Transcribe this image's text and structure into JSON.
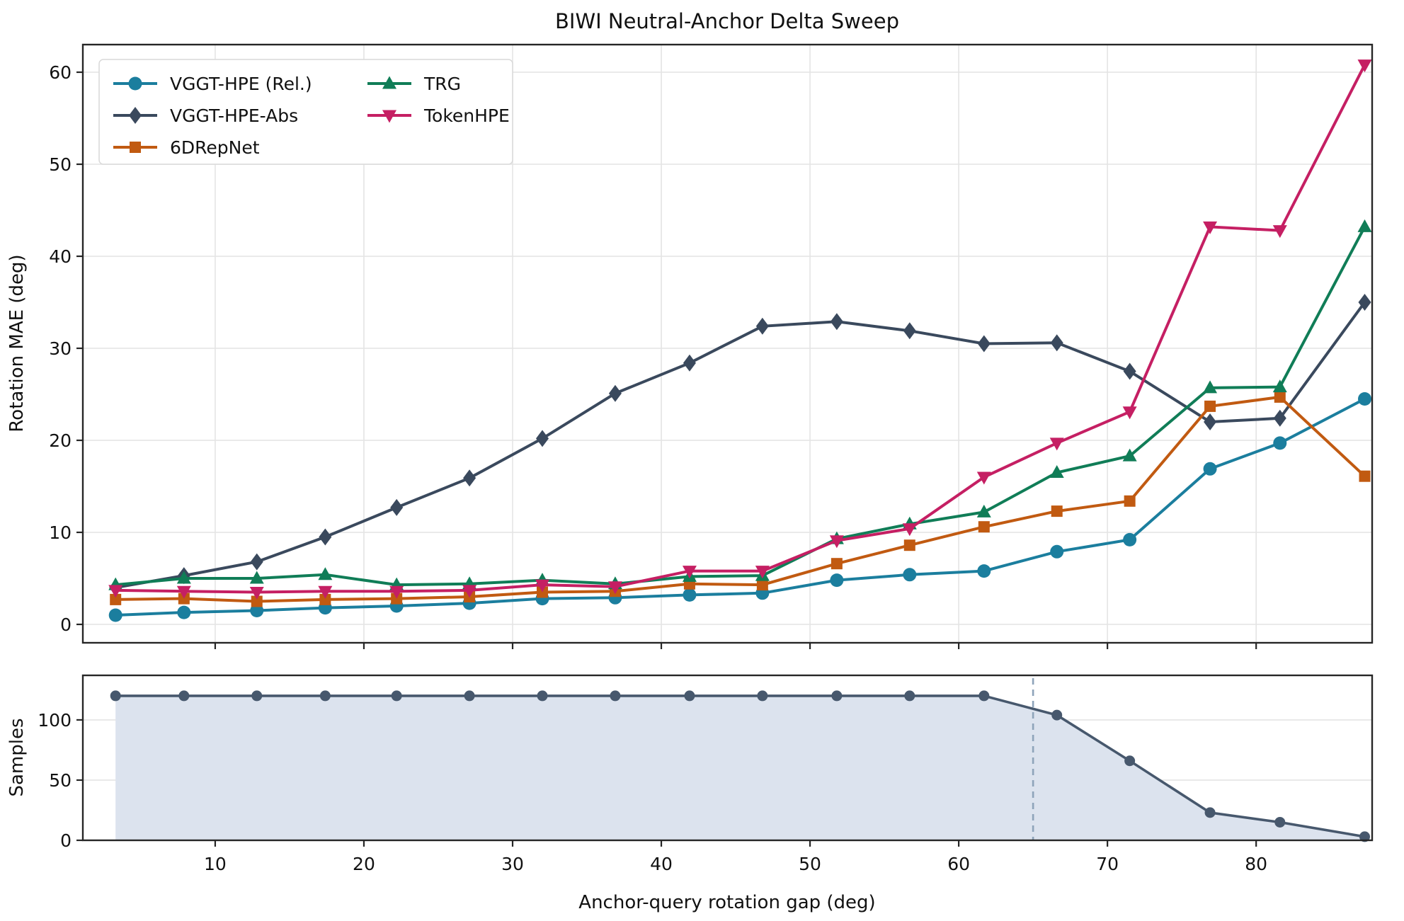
{
  "figure": {
    "title": "BIWI Neutral-Anchor Delta Sweep",
    "top_axis": {
      "ylabel": "Rotation MAE (deg)",
      "yticks": [
        0,
        10,
        20,
        30,
        40,
        50,
        60
      ],
      "xticks": [
        10,
        20,
        30,
        40,
        50,
        60,
        70,
        80
      ]
    },
    "bottom_axis": {
      "ylabel": "Samples",
      "xlabel": "Anchor-query rotation gap (deg)",
      "yticks": [
        0,
        50,
        100
      ],
      "xticks": [
        10,
        20,
        30,
        40,
        50,
        60,
        70,
        80
      ]
    },
    "legend": {
      "columns": 2,
      "entries": [
        "VGGT-HPE (Rel.)",
        "VGGT-HPE-Abs",
        "6DRepNet",
        "TRG",
        "TokenHPE"
      ]
    },
    "colors": {
      "grid": "#e4e4e4",
      "spine": "#262626",
      "text": "#111111",
      "samples_line": "#47586d",
      "samples_fill": "#dce3ee",
      "threshold_dash": "#8ea4ba"
    }
  },
  "chart_data": [
    {
      "type": "line",
      "title": "BIWI Neutral-Anchor Delta Sweep",
      "xlabel": "",
      "ylabel": "Rotation MAE (deg)",
      "x": [
        3.3,
        7.9,
        12.8,
        17.4,
        22.2,
        27.1,
        32.0,
        36.9,
        41.9,
        46.8,
        51.8,
        56.7,
        61.7,
        66.6,
        71.5,
        76.9,
        81.6,
        87.3
      ],
      "series": [
        {
          "name": "VGGT-HPE (Rel.)",
          "color": "#1b7e9e",
          "marker": "circle",
          "values": [
            1.0,
            1.3,
            1.5,
            1.8,
            2.0,
            2.3,
            2.8,
            2.9,
            3.2,
            3.4,
            4.8,
            5.4,
            5.8,
            7.9,
            9.2,
            16.9,
            19.7,
            24.5
          ]
        },
        {
          "name": "VGGT-HPE-Abs",
          "color": "#3a495d",
          "marker": "diamond",
          "values": [
            4.0,
            5.3,
            6.8,
            9.5,
            12.7,
            15.9,
            20.2,
            25.1,
            28.4,
            32.4,
            32.9,
            31.9,
            30.5,
            30.6,
            27.5,
            22.0,
            22.4,
            35.0
          ]
        },
        {
          "name": "6DRepNet",
          "color": "#c15a11",
          "marker": "square",
          "values": [
            2.7,
            2.8,
            2.5,
            2.7,
            2.8,
            3.0,
            3.5,
            3.6,
            4.4,
            4.3,
            6.6,
            8.6,
            10.6,
            12.3,
            13.4,
            23.7,
            24.7,
            16.1
          ]
        },
        {
          "name": "TRG",
          "color": "#107d57",
          "marker": "triangle-up",
          "values": [
            4.3,
            5.0,
            5.0,
            5.4,
            4.3,
            4.4,
            4.8,
            4.4,
            5.2,
            5.3,
            9.3,
            10.9,
            12.2,
            16.5,
            18.3,
            25.7,
            25.8,
            43.2
          ]
        },
        {
          "name": "TokenHPE",
          "color": "#c51f63",
          "marker": "triangle-down",
          "values": [
            3.7,
            3.6,
            3.5,
            3.6,
            3.6,
            3.7,
            4.3,
            4.1,
            5.8,
            5.8,
            9.1,
            10.4,
            16.0,
            19.7,
            23.1,
            43.2,
            42.8,
            60.8
          ]
        }
      ],
      "xlim": [
        1.1,
        87.8
      ],
      "ylim": [
        -2,
        63
      ],
      "yticks": [
        0,
        10,
        20,
        30,
        40,
        50,
        60
      ],
      "xticks": [
        10,
        20,
        30,
        40,
        50,
        60,
        70,
        80
      ],
      "grid": true,
      "legend_position": "upper left"
    },
    {
      "type": "area",
      "title": "",
      "xlabel": "Anchor-query rotation gap (deg)",
      "ylabel": "Samples",
      "x": [
        3.3,
        7.9,
        12.8,
        17.4,
        22.2,
        27.1,
        32.0,
        36.9,
        41.9,
        46.8,
        51.8,
        56.7,
        61.7,
        66.6,
        71.5,
        76.9,
        81.6,
        87.3
      ],
      "values": [
        120,
        120,
        120,
        120,
        120,
        120,
        120,
        120,
        120,
        120,
        120,
        120,
        120,
        104,
        66,
        23,
        15,
        3
      ],
      "threshold_vline_x": 65,
      "xlim": [
        1.1,
        87.8
      ],
      "ylim": [
        0,
        137
      ],
      "yticks": [
        0,
        50,
        100
      ],
      "xticks": [
        10,
        20,
        30,
        40,
        50,
        60,
        70,
        80
      ],
      "grid": true
    }
  ]
}
